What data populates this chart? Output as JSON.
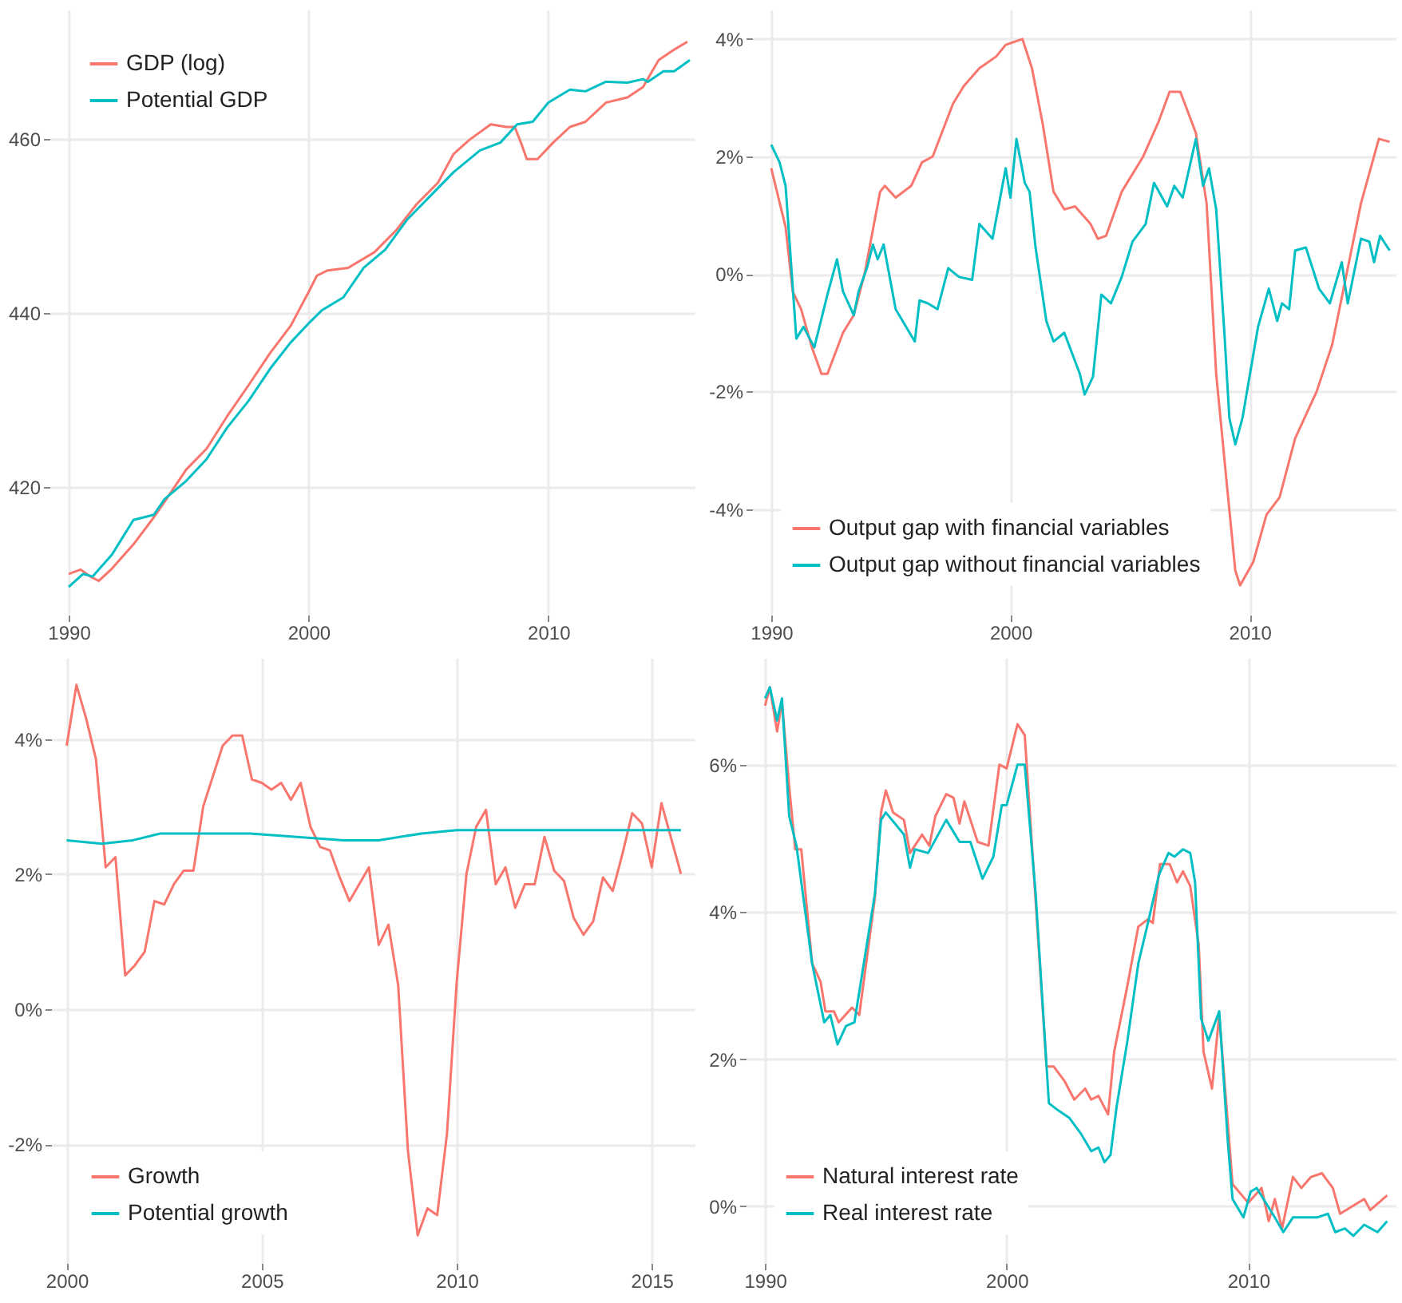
{
  "chart_data": [
    {
      "type": "line",
      "xlim": [
        1989.2,
        2016.1
      ],
      "xticks": [
        1990,
        2000,
        2010
      ],
      "ylim": [
        405.3,
        474.9
      ],
      "yticks": [
        420,
        440,
        460
      ],
      "grid": true,
      "legend": "top left",
      "series": [
        {
          "name": "GDP (log)",
          "color": "#f8766d",
          "x": [
            1990.0,
            1990.5,
            1990.9,
            1991.25,
            1991.8,
            1992.7,
            1993.55,
            1994.0,
            1994.9,
            1995.75,
            1996.6,
            1997.5,
            1998.4,
            1999.25,
            2000.0,
            2000.35,
            2000.8,
            2001.65,
            2002.75,
            2003.65,
            2004.5,
            2005.4,
            2006.05,
            2006.7,
            2007.6,
            2008.25,
            2008.6,
            2008.9,
            2009.1,
            2009.55,
            2010.2,
            2010.9,
            2011.55,
            2012.4,
            2013.3,
            2013.95,
            2014.6,
            2015.25,
            2015.8
          ],
          "values": [
            410.0,
            410.5,
            409.7,
            409.2,
            410.6,
            413.4,
            416.5,
            418.3,
            422.0,
            424.4,
            428.1,
            431.7,
            435.4,
            438.5,
            442.4,
            444.3,
            444.9,
            445.2,
            447.0,
            449.5,
            452.5,
            455.0,
            458.3,
            459.9,
            461.7,
            461.4,
            461.4,
            459.3,
            457.7,
            457.7,
            459.6,
            461.4,
            462.0,
            464.2,
            464.8,
            466.0,
            469.1,
            470.3,
            471.2
          ]
        },
        {
          "name": "Potential GDP",
          "color": "#00bfc4",
          "x": [
            1990.0,
            1990.6,
            1991.0,
            1991.8,
            1992.7,
            1993.55,
            1994.0,
            1994.9,
            1995.75,
            1996.6,
            1997.5,
            1998.4,
            1999.25,
            2000.0,
            2000.55,
            2001.45,
            2002.3,
            2003.2,
            2004.1,
            2004.95,
            2006.05,
            2007.15,
            2008.0,
            2008.7,
            2009.35,
            2010.0,
            2010.9,
            2011.55,
            2012.4,
            2013.3,
            2013.95,
            2014.15,
            2014.8,
            2015.25,
            2015.9
          ],
          "values": [
            408.5,
            410.0,
            409.7,
            412.2,
            416.2,
            416.8,
            418.6,
            420.7,
            423.2,
            426.8,
            429.9,
            433.6,
            436.6,
            438.8,
            440.3,
            441.8,
            445.2,
            447.3,
            450.7,
            453.1,
            456.2,
            458.7,
            459.6,
            461.7,
            462.0,
            464.2,
            465.7,
            465.5,
            466.6,
            466.5,
            466.9,
            466.6,
            467.8,
            467.8,
            469.1
          ]
        }
      ]
    },
    {
      "type": "line",
      "xlim": [
        1989.2,
        2016.1
      ],
      "xticks": [
        1990,
        2000,
        2010
      ],
      "ylim": [
        -5.8,
        4.5
      ],
      "yticks": [
        {
          "value": -4,
          "label": "-4%"
        },
        {
          "value": -2,
          "label": "-2%"
        },
        {
          "value": 0,
          "label": "0%"
        },
        {
          "value": 2,
          "label": "2%"
        },
        {
          "value": 4,
          "label": "4%"
        }
      ],
      "grid": true,
      "legend": "bottom left",
      "series": [
        {
          "name": "Output gap with financial variables",
          "color": "#f8766d",
          "x": [
            1990.0,
            1990.6,
            1990.9,
            1991.25,
            1991.7,
            1992.1,
            1992.35,
            1993.0,
            1993.45,
            1993.9,
            1994.55,
            1994.75,
            1995.2,
            1995.85,
            1996.3,
            1996.75,
            1997.6,
            1998.05,
            1998.7,
            1999.4,
            1999.8,
            2000.5,
            2000.9,
            2001.35,
            2001.8,
            2002.25,
            2002.7,
            2003.35,
            2003.65,
            2004.0,
            2004.65,
            2005.55,
            2006.2,
            2006.65,
            2007.1,
            2007.75,
            2008.2,
            2008.6,
            2009.05,
            2009.4,
            2009.6,
            2010.15,
            2010.7,
            2011.25,
            2011.9,
            2012.8,
            2013.45,
            2014.1,
            2014.65,
            2015.4,
            2015.85
          ],
          "values": [
            1.8,
            0.8,
            -0.3,
            -0.6,
            -1.25,
            -1.7,
            -1.7,
            -1.0,
            -0.7,
            0.0,
            1.4,
            1.5,
            1.3,
            1.5,
            1.9,
            2.0,
            2.9,
            3.2,
            3.5,
            3.7,
            3.9,
            4.0,
            3.5,
            2.55,
            1.4,
            1.1,
            1.15,
            0.85,
            0.6,
            0.65,
            1.4,
            2.0,
            2.6,
            3.1,
            3.1,
            2.4,
            1.2,
            -1.7,
            -3.6,
            -5.05,
            -5.3,
            -4.9,
            -4.1,
            -3.8,
            -2.8,
            -2.0,
            -1.2,
            0.1,
            1.2,
            2.3,
            2.25
          ]
        },
        {
          "name": "Output gap without financial variables",
          "color": "#00bfc4",
          "x": [
            1990.0,
            1990.35,
            1990.6,
            1991.05,
            1991.35,
            1991.8,
            1992.35,
            1992.75,
            1993.0,
            1993.45,
            1993.65,
            1994.0,
            1994.25,
            1994.45,
            1994.7,
            1995.2,
            1996.0,
            1996.2,
            1996.55,
            1996.95,
            1997.4,
            1997.85,
            1998.4,
            1998.7,
            1999.25,
            1999.8,
            2000.0,
            2000.25,
            2000.6,
            2000.8,
            2001.05,
            2001.5,
            2001.8,
            2002.25,
            2002.9,
            2003.1,
            2003.45,
            2003.8,
            2004.2,
            2004.65,
            2005.1,
            2005.65,
            2006.0,
            2006.55,
            2006.85,
            2007.2,
            2007.75,
            2008.05,
            2008.3,
            2008.6,
            2008.95,
            2009.15,
            2009.4,
            2009.7,
            2009.95,
            2010.35,
            2010.8,
            2011.15,
            2011.35,
            2011.65,
            2011.9,
            2012.35,
            2012.9,
            2013.35,
            2013.85,
            2014.1,
            2014.65,
            2015.0,
            2015.2,
            2015.45,
            2015.85
          ],
          "values": [
            2.2,
            1.9,
            1.5,
            -1.1,
            -0.9,
            -1.25,
            -0.35,
            0.25,
            -0.3,
            -0.7,
            -0.3,
            0.1,
            0.5,
            0.25,
            0.5,
            -0.6,
            -1.15,
            -0.45,
            -0.5,
            -0.6,
            0.1,
            -0.05,
            -0.1,
            0.85,
            0.6,
            1.8,
            1.3,
            2.3,
            1.55,
            1.4,
            0.45,
            -0.8,
            -1.15,
            -1.0,
            -1.7,
            -2.05,
            -1.75,
            -0.35,
            -0.5,
            -0.05,
            0.55,
            0.85,
            1.55,
            1.15,
            1.5,
            1.3,
            2.3,
            1.5,
            1.8,
            1.1,
            -1.05,
            -2.45,
            -2.9,
            -2.45,
            -1.85,
            -0.9,
            -0.25,
            -0.8,
            -0.5,
            -0.6,
            0.4,
            0.45,
            -0.25,
            -0.5,
            0.2,
            -0.5,
            0.6,
            0.55,
            0.2,
            0.65,
            0.4
          ]
        }
      ]
    },
    {
      "type": "line",
      "xlim": [
        1999.6,
        2016.1
      ],
      "xticks": [
        2000,
        2005,
        2010,
        2015
      ],
      "ylim": [
        -3.76,
        5.2
      ],
      "yticks": [
        {
          "value": -2,
          "label": "-2%"
        },
        {
          "value": 0,
          "label": "0%"
        },
        {
          "value": 2,
          "label": "2%"
        },
        {
          "value": 4,
          "label": "4%"
        }
      ],
      "grid": true,
      "legend": "bottom left",
      "series": [
        {
          "name": "Growth",
          "color": "#f8766d",
          "x": [
            2000.0,
            2000.25,
            2000.5,
            2000.75,
            2001.0,
            2001.25,
            2001.5,
            2001.75,
            2002.0,
            2002.25,
            2002.5,
            2002.75,
            2003.0,
            2003.25,
            2003.5,
            2004.0,
            2004.25,
            2004.5,
            2004.75,
            2005.0,
            2005.25,
            2005.5,
            2005.75,
            2006.0,
            2006.25,
            2006.5,
            2006.75,
            2007.0,
            2007.25,
            2007.5,
            2007.75,
            2008.0,
            2008.25,
            2008.5,
            2008.75,
            2009.0,
            2009.25,
            2009.5,
            2009.75,
            2010.0,
            2010.25,
            2010.5,
            2010.75,
            2011.0,
            2011.25,
            2011.5,
            2011.75,
            2012.0,
            2012.25,
            2012.5,
            2012.75,
            2013.0,
            2013.25,
            2013.5,
            2013.75,
            2014.0,
            2014.25,
            2014.5,
            2014.75,
            2015.0,
            2015.25,
            2015.75
          ],
          "values": [
            3.9,
            4.8,
            4.3,
            3.7,
            2.1,
            2.25,
            0.5,
            0.65,
            0.85,
            1.6,
            1.55,
            1.85,
            2.05,
            2.05,
            3.0,
            3.9,
            4.05,
            4.05,
            3.4,
            3.35,
            3.25,
            3.35,
            3.1,
            3.35,
            2.7,
            2.4,
            2.35,
            1.95,
            1.6,
            1.85,
            2.1,
            0.95,
            1.25,
            0.35,
            -2.1,
            -3.35,
            -2.95,
            -3.05,
            -1.85,
            0.4,
            2.0,
            2.7,
            2.95,
            1.85,
            2.1,
            1.5,
            1.85,
            1.85,
            2.55,
            2.05,
            1.9,
            1.35,
            1.1,
            1.3,
            1.95,
            1.75,
            2.3,
            2.9,
            2.75,
            2.1,
            3.05,
            2.0
          ]
        },
        {
          "name": "Potential growth",
          "color": "#00bfc4",
          "x": [
            2000.0,
            2000.9,
            2001.7,
            2002.4,
            2003.7,
            2004.7,
            2005.9,
            2007.1,
            2008.0,
            2009.1,
            2010.0,
            2011.75,
            2015.75
          ],
          "values": [
            2.5,
            2.45,
            2.5,
            2.6,
            2.6,
            2.6,
            2.55,
            2.5,
            2.5,
            2.6,
            2.65,
            2.65,
            2.65
          ]
        }
      ]
    },
    {
      "type": "line",
      "xlim": [
        1989.2,
        2016.1
      ],
      "xticks": [
        1990,
        2000,
        2010
      ],
      "ylim": [
        -0.77,
        7.45
      ],
      "yticks": [
        {
          "value": 0,
          "label": "0%"
        },
        {
          "value": 2,
          "label": "2%"
        },
        {
          "value": 4,
          "label": "4%"
        },
        {
          "value": 6,
          "label": "6%"
        }
      ],
      "grid": true,
      "legend": "bottom left",
      "series": [
        {
          "name": "Natural interest rate",
          "color": "#f8766d",
          "x": [
            1990.0,
            1990.2,
            1990.5,
            1990.7,
            1991.0,
            1991.25,
            1991.5,
            1991.95,
            1992.3,
            1992.5,
            1992.85,
            1993.05,
            1993.6,
            1993.9,
            1994.55,
            1994.8,
            1995.0,
            1995.3,
            1995.75,
            1996.0,
            1996.5,
            1996.8,
            1997.05,
            1997.5,
            1997.8,
            1998.05,
            1998.25,
            1998.8,
            1999.25,
            1999.7,
            2000.0,
            2000.45,
            2000.75,
            2001.2,
            2001.65,
            2001.95,
            2002.4,
            2002.8,
            2003.25,
            2003.5,
            2003.8,
            2004.2,
            2004.45,
            2005.0,
            2005.45,
            2005.85,
            2006.05,
            2006.35,
            2006.75,
            2007.05,
            2007.3,
            2007.6,
            2007.95,
            2008.15,
            2008.5,
            2008.8,
            2009.15,
            2009.35,
            2010.0,
            2010.55,
            2010.85,
            2011.1,
            2011.4,
            2011.85,
            2012.2,
            2012.6,
            2013.05,
            2013.5,
            2013.8,
            2014.8,
            2015.05,
            2015.75
          ],
          "values": [
            6.8,
            7.05,
            6.45,
            6.85,
            5.7,
            4.85,
            4.85,
            3.3,
            3.05,
            2.65,
            2.65,
            2.5,
            2.7,
            2.6,
            4.2,
            5.35,
            5.65,
            5.35,
            5.25,
            4.8,
            5.05,
            4.9,
            5.3,
            5.6,
            5.55,
            5.2,
            5.5,
            4.95,
            4.9,
            6.0,
            5.95,
            6.55,
            6.4,
            4.15,
            1.9,
            1.9,
            1.7,
            1.45,
            1.6,
            1.45,
            1.5,
            1.25,
            2.1,
            3.0,
            3.8,
            3.9,
            3.85,
            4.65,
            4.65,
            4.4,
            4.55,
            4.35,
            3.55,
            2.1,
            1.6,
            2.6,
            1.15,
            0.3,
            0.05,
            0.25,
            -0.2,
            0.1,
            -0.3,
            0.4,
            0.25,
            0.4,
            0.45,
            0.25,
            -0.1,
            0.1,
            -0.05,
            0.15
          ]
        },
        {
          "name": "Real interest rate",
          "color": "#00bfc4",
          "x": [
            1990.0,
            1990.2,
            1990.5,
            1990.7,
            1991.0,
            1991.3,
            1991.95,
            1992.45,
            1992.7,
            1993.0,
            1993.35,
            1993.7,
            1994.55,
            1994.8,
            1995.0,
            1995.75,
            1996.0,
            1996.2,
            1996.75,
            1997.5,
            1998.05,
            1998.5,
            1999.0,
            1999.45,
            1999.8,
            2000.0,
            2000.45,
            2000.75,
            2001.2,
            2001.75,
            2002.15,
            2002.6,
            2003.05,
            2003.5,
            2003.8,
            2004.05,
            2004.3,
            2004.55,
            2005.0,
            2005.45,
            2005.85,
            2006.3,
            2006.7,
            2006.95,
            2007.3,
            2007.6,
            2007.8,
            2008.05,
            2008.35,
            2008.8,
            2009.15,
            2009.35,
            2009.8,
            2010.1,
            2010.35,
            2011.1,
            2011.45,
            2011.85,
            2012.85,
            2013.3,
            2013.6,
            2014.0,
            2014.35,
            2014.8,
            2015.35,
            2015.75
          ],
          "values": [
            6.9,
            7.05,
            6.6,
            6.9,
            5.3,
            4.9,
            3.3,
            2.5,
            2.6,
            2.2,
            2.45,
            2.5,
            4.25,
            5.25,
            5.35,
            5.05,
            4.6,
            4.85,
            4.8,
            5.25,
            4.95,
            4.95,
            4.45,
            4.75,
            5.45,
            5.45,
            6.0,
            6.0,
            4.25,
            1.4,
            1.3,
            1.2,
            1.0,
            0.75,
            0.8,
            0.6,
            0.7,
            1.35,
            2.25,
            3.3,
            3.85,
            4.5,
            4.8,
            4.75,
            4.85,
            4.8,
            4.4,
            2.55,
            2.25,
            2.65,
            0.9,
            0.1,
            -0.15,
            0.2,
            0.25,
            -0.15,
            -0.35,
            -0.15,
            -0.15,
            -0.1,
            -0.35,
            -0.3,
            -0.4,
            -0.25,
            -0.35,
            -0.2
          ]
        }
      ]
    }
  ]
}
